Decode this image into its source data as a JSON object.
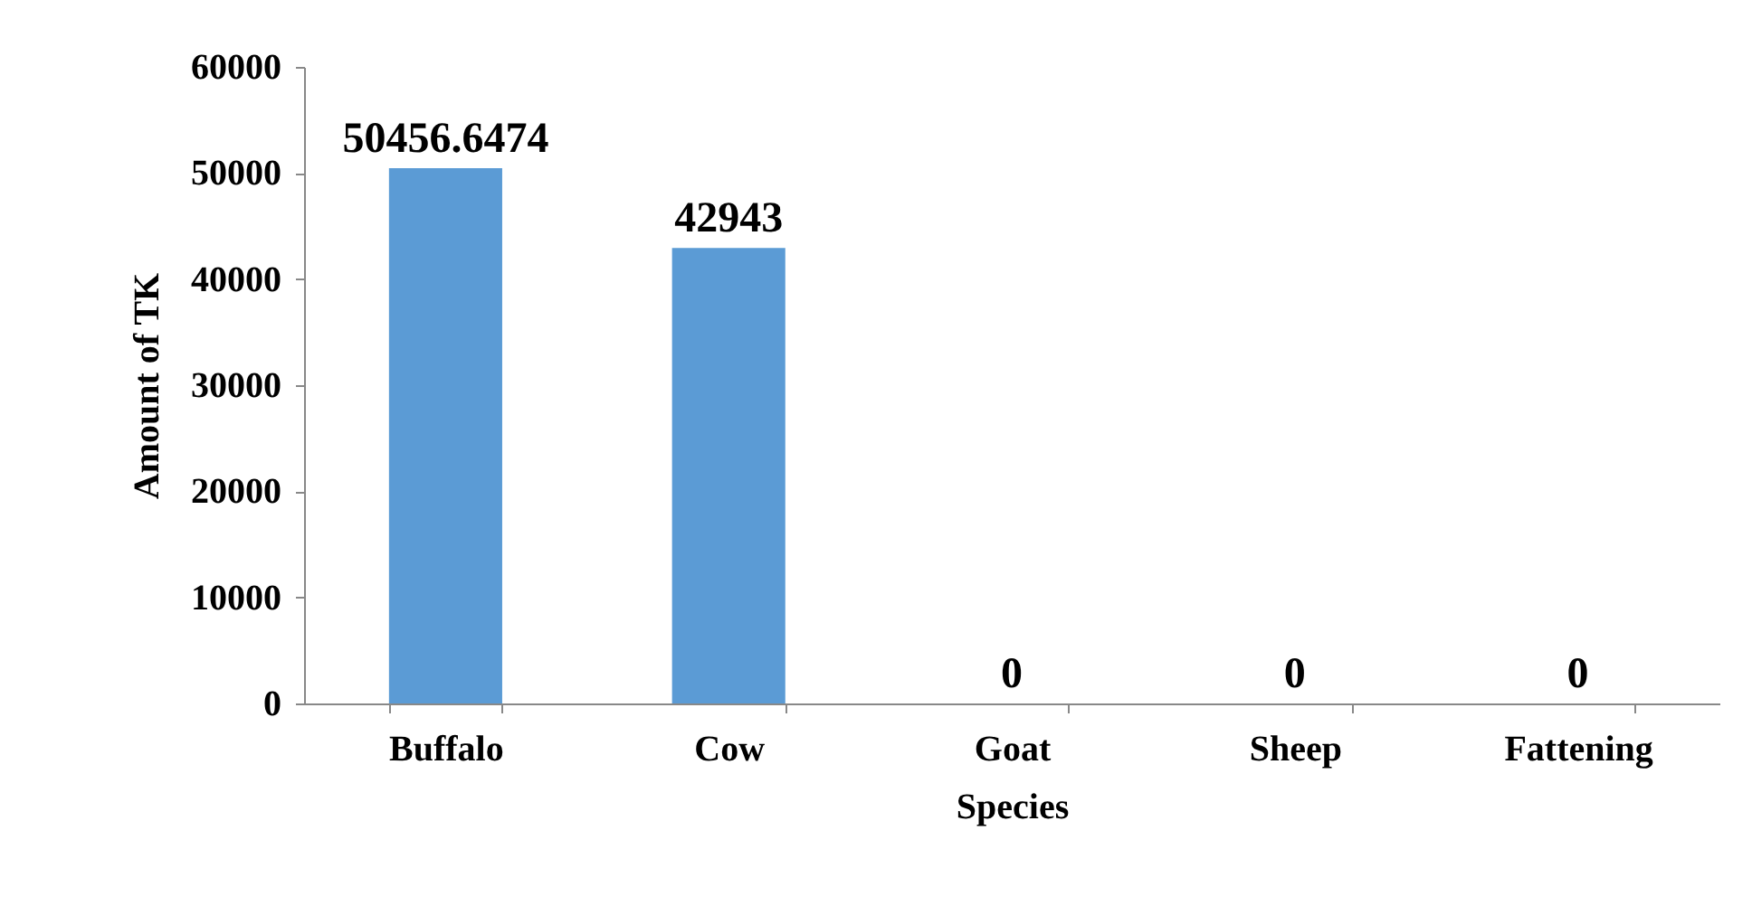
{
  "chart_data": {
    "type": "bar",
    "xlabel": "Species",
    "ylabel": "Amount of TK",
    "categories": [
      "Buffalo",
      "Cow",
      "Goat",
      "Sheep",
      "Fattening"
    ],
    "values": [
      50456.6474,
      42943,
      0,
      0,
      0
    ],
    "color": "#5b9bd5",
    "ylim": [
      0,
      60000
    ],
    "yticks": [
      0,
      10000,
      20000,
      30000,
      40000,
      50000,
      60000
    ],
    "grid": false,
    "data_labels": true
  }
}
